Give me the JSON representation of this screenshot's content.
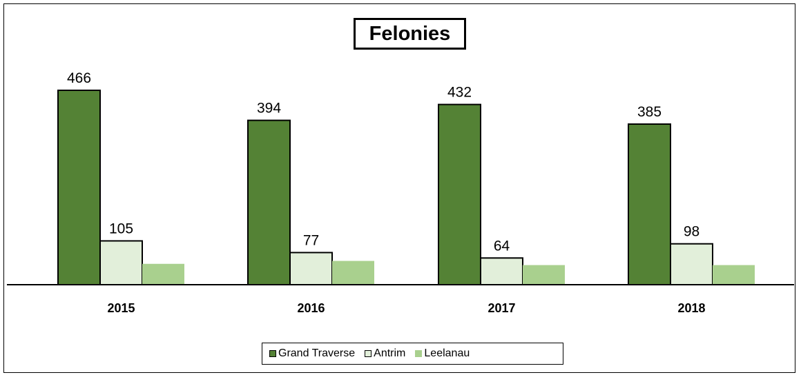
{
  "chart_data": {
    "type": "bar",
    "title": "Felonies",
    "categories": [
      "2015",
      "2016",
      "2017",
      "2018"
    ],
    "series": [
      {
        "name": "Grand Traverse",
        "values": [
          466,
          394,
          432,
          385
        ],
        "color": "#548235",
        "labels": [
          "466",
          "394",
          "432",
          "385"
        ]
      },
      {
        "name": "Antrim",
        "values": [
          105,
          77,
          64,
          98
        ],
        "color": "#e2efda",
        "labels": [
          "105",
          "77",
          "64",
          "98"
        ]
      },
      {
        "name": "Leelanau",
        "values": [
          50,
          57,
          47,
          47
        ],
        "color": "#a9d08e",
        "labels": [
          "",
          "",
          "",
          ""
        ]
      }
    ],
    "xlabel": "",
    "ylabel": "",
    "ylim": [
      0,
      500
    ],
    "grid": false,
    "legend_position": "bottom"
  }
}
